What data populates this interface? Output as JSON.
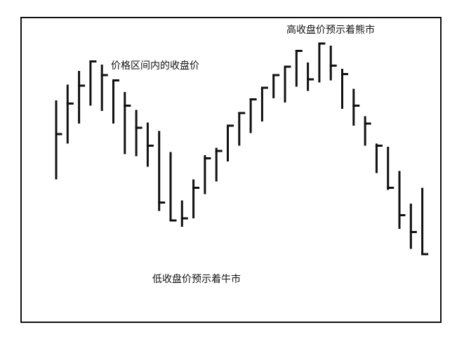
{
  "labels": {
    "range_close": "价格区间内的收盘价",
    "high_close": "高收盘价预示着熊市",
    "low_close": "低收盘价预示着牛市"
  },
  "colors": {
    "ink": "#111111",
    "background": "#ffffff"
  },
  "chart_data": {
    "type": "bar",
    "bars": [
      {
        "high": 0.725,
        "low": 0.36,
        "close": 0.57
      },
      {
        "high": 0.8,
        "low": 0.53,
        "close": 0.715
      },
      {
        "high": 0.865,
        "low": 0.625,
        "close": 0.8
      },
      {
        "high": 0.915,
        "low": 0.71,
        "close": 0.915
      },
      {
        "high": 0.895,
        "low": 0.685,
        "close": 0.85
      },
      {
        "high": 0.825,
        "low": 0.625,
        "close": 0.825
      },
      {
        "high": 0.765,
        "low": 0.48,
        "close": 0.705
      },
      {
        "high": 0.68,
        "low": 0.47,
        "close": 0.6
      },
      {
        "high": 0.62,
        "low": 0.42,
        "close": 0.515
      },
      {
        "high": 0.58,
        "low": 0.21,
        "close": 0.245
      },
      {
        "high": 0.48,
        "low": 0.16,
        "close": 0.16
      },
      {
        "high": 0.25,
        "low": 0.135,
        "close": 0.17
      },
      {
        "high": 0.35,
        "low": 0.175,
        "close": 0.315
      },
      {
        "high": 0.465,
        "low": 0.29,
        "close": 0.455
      },
      {
        "high": 0.5,
        "low": 0.35,
        "close": 0.49
      },
      {
        "high": 0.61,
        "low": 0.445,
        "close": 0.61
      },
      {
        "high": 0.67,
        "low": 0.52,
        "close": 0.67
      },
      {
        "high": 0.735,
        "low": 0.58,
        "close": 0.735
      },
      {
        "high": 0.79,
        "low": 0.635,
        "close": 0.79
      },
      {
        "high": 0.85,
        "low": 0.745,
        "close": 0.85
      },
      {
        "high": 0.89,
        "low": 0.725,
        "close": 0.89
      },
      {
        "high": 0.965,
        "low": 0.8,
        "close": 0.965
      },
      {
        "high": 0.905,
        "low": 0.78,
        "close": 0.83
      },
      {
        "high": 1.0,
        "low": 0.82,
        "close": 1.0
      },
      {
        "high": 0.985,
        "low": 0.83,
        "close": 0.895
      },
      {
        "high": 0.875,
        "low": 0.695,
        "close": 0.855
      },
      {
        "high": 0.78,
        "low": 0.615,
        "close": 0.705
      },
      {
        "high": 0.65,
        "low": 0.52,
        "close": 0.62
      },
      {
        "high": 0.52,
        "low": 0.39,
        "close": 0.515
      },
      {
        "high": 0.505,
        "low": 0.31,
        "close": 0.315
      },
      {
        "high": 0.39,
        "low": 0.125,
        "close": 0.185
      },
      {
        "high": 0.235,
        "low": 0.03,
        "close": 0.105
      },
      {
        "high": 0.31,
        "low": 0.0,
        "close": 0.0
      }
    ]
  }
}
